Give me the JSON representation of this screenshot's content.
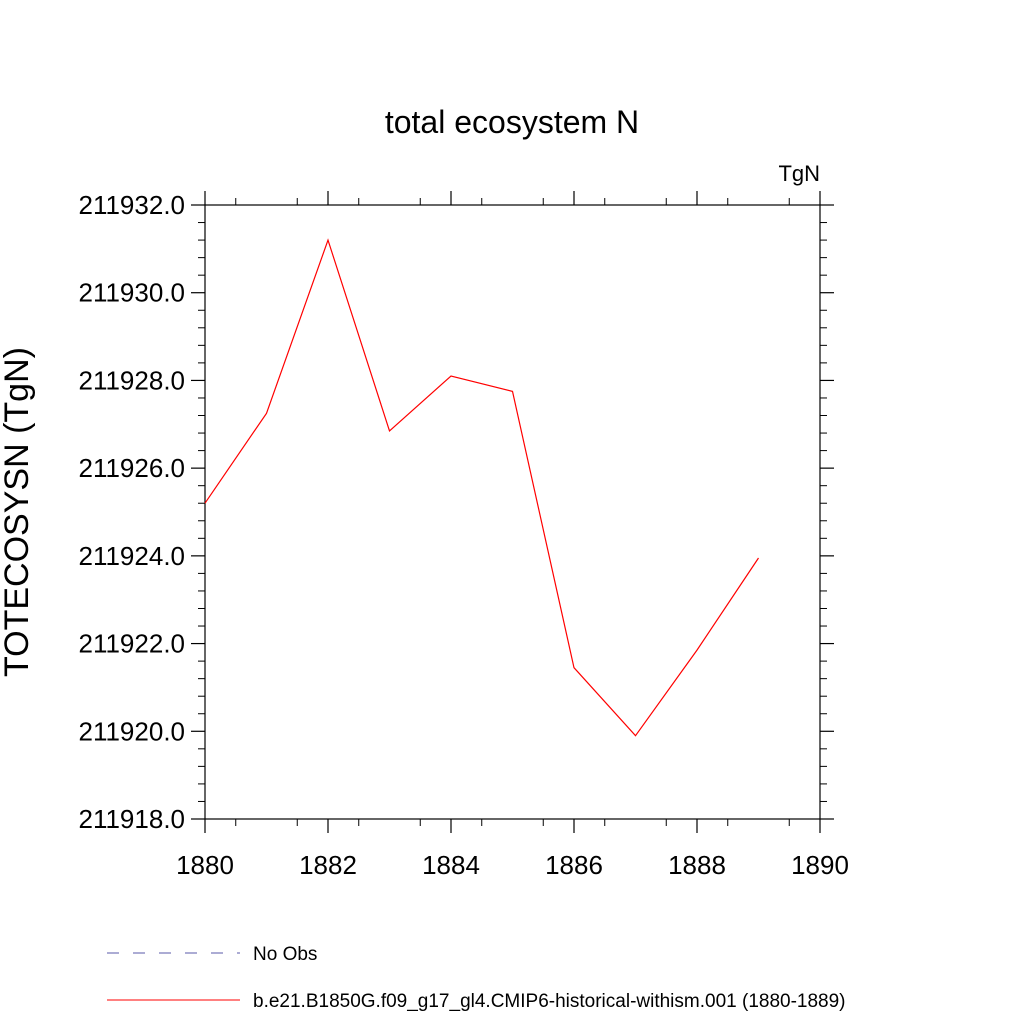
{
  "chart_data": {
    "type": "line",
    "title": "total ecosystem N",
    "units_label": "TgN",
    "ylabel": "TOTECOSYSN  (TgN)",
    "xlabel": "",
    "xlim": [
      1880,
      1890
    ],
    "ylim": [
      211918.0,
      211932.0
    ],
    "x_ticks": [
      "1880",
      "1882",
      "1884",
      "1886",
      "1888",
      "1890"
    ],
    "y_ticks": [
      "211918.0",
      "211920.0",
      "211922.0",
      "211924.0",
      "211926.0",
      "211928.0",
      "211930.0",
      "211932.0"
    ],
    "grid": false,
    "legend_position": "bottom-left",
    "series": [
      {
        "name": "b.e21.B1850G.f09_g17_gl4.CMIP6-historical-withism.001 (1880-1889)",
        "color": "#ff0000",
        "style": "solid",
        "x": [
          1880,
          1881,
          1882,
          1883,
          1884,
          1885,
          1886,
          1887,
          1888,
          1889
        ],
        "values": [
          211925.2,
          211927.25,
          211931.2,
          211926.85,
          211928.1,
          211927.75,
          211921.45,
          211919.9,
          211921.85,
          211923.95
        ]
      }
    ],
    "legend": [
      {
        "label": "No Obs",
        "color": "#5a5aa8",
        "style": "dashed"
      },
      {
        "label": "b.e21.B1850G.f09_g17_gl4.CMIP6-historical-withism.001 (1880-1889)",
        "color": "#ff0000",
        "style": "solid"
      }
    ]
  }
}
